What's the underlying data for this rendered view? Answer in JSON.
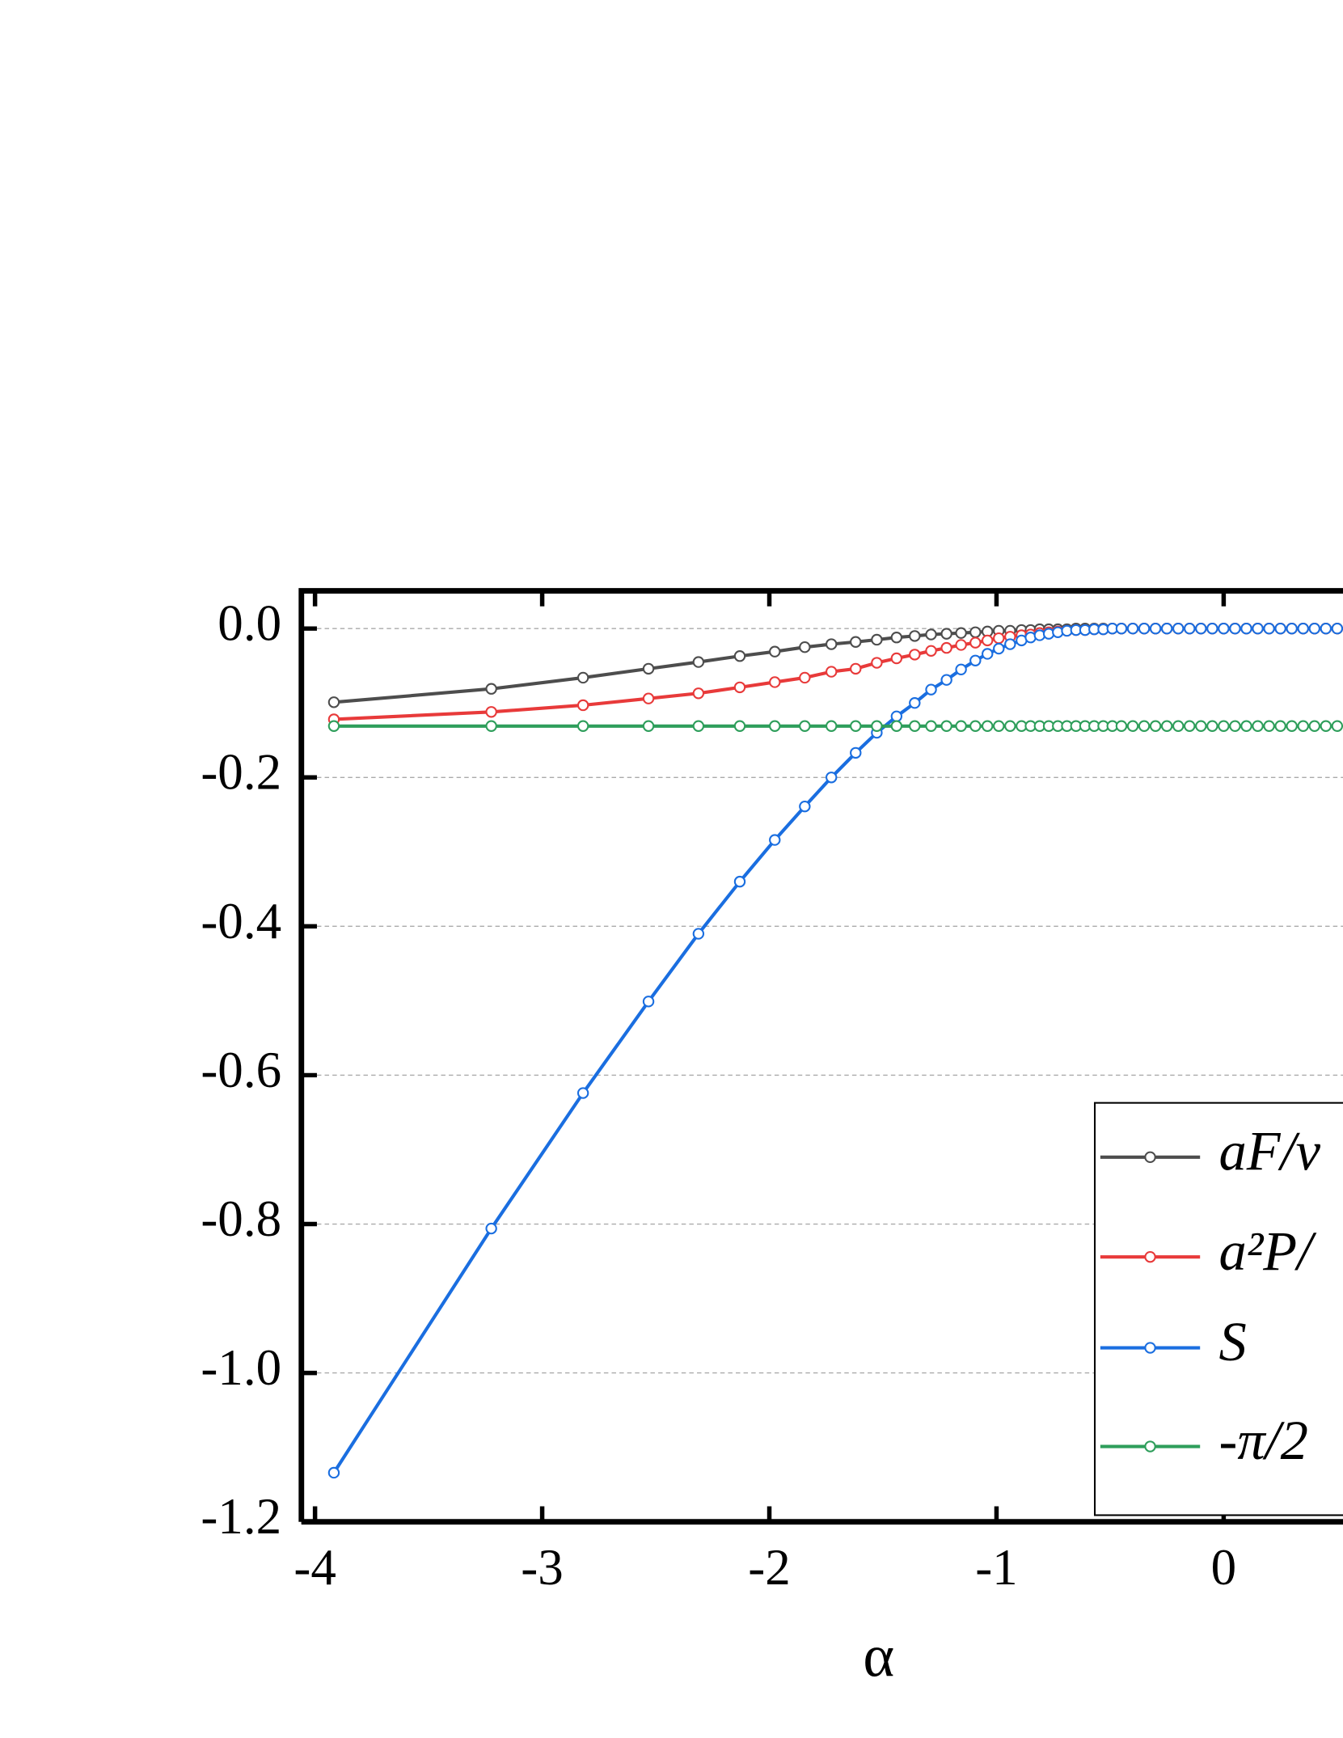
{
  "chart_data": {
    "type": "line",
    "x_label": "α",
    "x": [
      -3.917,
      -3.224,
      -2.82,
      -2.532,
      -2.312,
      -2.13,
      -1.976,
      -1.844,
      -1.727,
      -1.62,
      -1.527,
      -1.44,
      -1.36,
      -1.288,
      -1.22,
      -1.156,
      -1.093,
      -1.04,
      -0.99,
      -0.94,
      -0.89,
      -0.85,
      -0.81,
      -0.77,
      -0.73,
      -0.69,
      -0.65,
      -0.61,
      -0.57,
      -0.53,
      -0.49,
      -0.45,
      -0.4,
      -0.35,
      -0.3,
      -0.25,
      -0.2,
      -0.15,
      -0.1,
      -0.05,
      0,
      0.05,
      0.1,
      0.15,
      0.2,
      0.25,
      0.3,
      0.35,
      0.4,
      0.45,
      0.5
    ],
    "series": [
      {
        "name": "aF/v",
        "color": "#4d4d4d",
        "values": [
          -0.099,
          -0.081,
          -0.066,
          -0.054,
          -0.045,
          -0.037,
          -0.031,
          -0.025,
          -0.021,
          -0.018,
          -0.015,
          -0.012,
          -0.01,
          -0.008,
          -0.007,
          -0.006,
          -0.005,
          -0.004,
          -0.003,
          -0.003,
          -0.002,
          -0.002,
          -0.001,
          -0.001,
          -0.001,
          -0.001,
          0,
          0,
          0,
          0,
          0,
          0,
          0,
          0,
          0,
          0,
          0,
          0,
          0,
          0,
          0,
          0,
          0,
          0,
          0,
          0,
          0,
          0,
          0,
          0,
          0
        ]
      },
      {
        "name": "a²P/",
        "color": "#e83a3a",
        "values": [
          -0.122,
          -0.112,
          -0.103,
          -0.094,
          -0.087,
          -0.079,
          -0.072,
          -0.066,
          -0.058,
          -0.054,
          -0.046,
          -0.04,
          -0.035,
          -0.03,
          -0.026,
          -0.022,
          -0.019,
          -0.016,
          -0.013,
          -0.011,
          -0.009,
          -0.008,
          -0.006,
          -0.005,
          -0.004,
          -0.003,
          -0.002,
          -0.002,
          -0.001,
          -0.001,
          0,
          0,
          0,
          0,
          0,
          0,
          0,
          0,
          0,
          0,
          0,
          0,
          0,
          0,
          0,
          0,
          0,
          0,
          0,
          0,
          0
        ]
      },
      {
        "name": "S",
        "color": "#1a6ee0",
        "values": [
          -1.134,
          -0.806,
          -0.624,
          -0.501,
          -0.41,
          -0.34,
          -0.284,
          -0.239,
          -0.2,
          -0.167,
          -0.14,
          -0.118,
          -0.1,
          -0.082,
          -0.069,
          -0.055,
          -0.043,
          -0.034,
          -0.027,
          -0.021,
          -0.016,
          -0.012,
          -0.009,
          -0.007,
          -0.005,
          -0.003,
          -0.002,
          -0.002,
          -0.001,
          -0.001,
          0,
          0,
          0,
          0,
          0,
          0,
          0,
          0,
          0,
          0,
          0,
          0,
          0,
          0,
          0,
          0,
          0,
          0,
          0,
          0,
          0
        ]
      },
      {
        "name": "-π/2",
        "color": "#2e9e5b",
        "values": [
          -0.131,
          -0.131,
          -0.131,
          -0.131,
          -0.131,
          -0.131,
          -0.131,
          -0.131,
          -0.131,
          -0.131,
          -0.131,
          -0.131,
          -0.131,
          -0.131,
          -0.131,
          -0.131,
          -0.131,
          -0.131,
          -0.131,
          -0.131,
          -0.131,
          -0.131,
          -0.131,
          -0.131,
          -0.131,
          -0.131,
          -0.131,
          -0.131,
          -0.131,
          -0.131,
          -0.131,
          -0.131,
          -0.131,
          -0.131,
          -0.131,
          -0.131,
          -0.131,
          -0.131,
          -0.131,
          -0.131,
          -0.131,
          -0.131,
          -0.131,
          -0.131,
          -0.131,
          -0.131,
          -0.131,
          -0.131,
          -0.131,
          -0.131,
          -0.131
        ]
      }
    ],
    "xlim": [
      -4.06,
      0.537
    ],
    "xticks": [
      -4,
      -3,
      -2,
      -1,
      0
    ],
    "ylim": [
      -1.2,
      0.0507
    ],
    "yticks": [
      {
        "value": 0,
        "label": "0.0"
      },
      -0.2,
      -0.4,
      -0.6,
      -0.8,
      {
        "value": -1,
        "label": "-1.0"
      },
      -1.2
    ],
    "grid": true
  }
}
